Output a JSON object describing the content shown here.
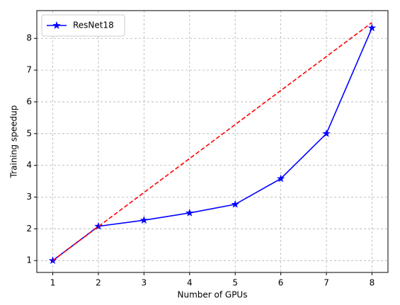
{
  "chart_data": {
    "type": "line",
    "x_label": "Number of GPUs",
    "y_label": "Training speedup",
    "x": [
      1,
      2,
      3,
      4,
      5,
      6,
      7,
      8
    ],
    "series": [
      {
        "name": "ResNet18",
        "color": "#0000ff",
        "marker": "star",
        "linestyle": "solid",
        "values": [
          1,
          2.08,
          2.27,
          2.5,
          2.77,
          3.58,
          5.0,
          8.33
        ]
      },
      {
        "color": "#ff0000",
        "linestyle": "dashed",
        "x": [
          1,
          8
        ],
        "values": [
          1,
          8.5
        ]
      }
    ],
    "xlim": [
      0.65,
      8.35
    ],
    "xticks": [
      1,
      2,
      3,
      4,
      5,
      6,
      7,
      8
    ],
    "ylim": [
      0.625,
      8.875
    ],
    "yticks": [
      1,
      2,
      3,
      4,
      5,
      6,
      7,
      8
    ],
    "grid": true,
    "legend": "upper-left"
  }
}
